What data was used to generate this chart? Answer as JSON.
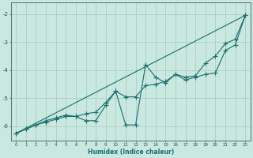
{
  "xlabel": "Humidex (Indice chaleur)",
  "xlim": [
    -0.5,
    23.5
  ],
  "ylim": [
    -6.5,
    -1.6
  ],
  "bg_color": "#c8e8e0",
  "grid_color": "#aac8c0",
  "line_color": "#1a6e6e",
  "line1_x": [
    0,
    1,
    2,
    3,
    4,
    5,
    6,
    7,
    8,
    9,
    10,
    11,
    12,
    13,
    14,
    15,
    16,
    17,
    18,
    19,
    20,
    21,
    22,
    23
  ],
  "line1_y": [
    -6.25,
    -6.1,
    -5.95,
    -5.85,
    -5.75,
    -5.65,
    -5.65,
    -5.8,
    -5.8,
    -5.25,
    -4.75,
    -5.95,
    -5.95,
    -3.8,
    -4.25,
    -4.45,
    -4.15,
    -4.35,
    -4.25,
    -4.15,
    -4.1,
    -3.3,
    -3.1,
    -2.05
  ],
  "line2_x": [
    0,
    1,
    2,
    3,
    4,
    5,
    6,
    7,
    8,
    9,
    10,
    11,
    12,
    13,
    14,
    15,
    16,
    17,
    18,
    19,
    20,
    21,
    22,
    23
  ],
  "line2_y": [
    -6.25,
    -6.1,
    -5.95,
    -5.8,
    -5.7,
    -5.6,
    -5.65,
    -5.55,
    -5.5,
    -5.15,
    -4.75,
    -4.95,
    -4.95,
    -4.55,
    -4.5,
    -4.4,
    -4.15,
    -4.25,
    -4.2,
    -3.75,
    -3.5,
    -3.05,
    -2.9,
    -2.05
  ],
  "line3_x": [
    0,
    23
  ],
  "line3_y": [
    -6.25,
    -2.05
  ],
  "yticks": [
    -6,
    -5,
    -4,
    -3,
    -2
  ],
  "xticks": [
    0,
    1,
    2,
    3,
    4,
    5,
    6,
    7,
    8,
    9,
    10,
    11,
    12,
    13,
    14,
    15,
    16,
    17,
    18,
    19,
    20,
    21,
    22,
    23
  ]
}
